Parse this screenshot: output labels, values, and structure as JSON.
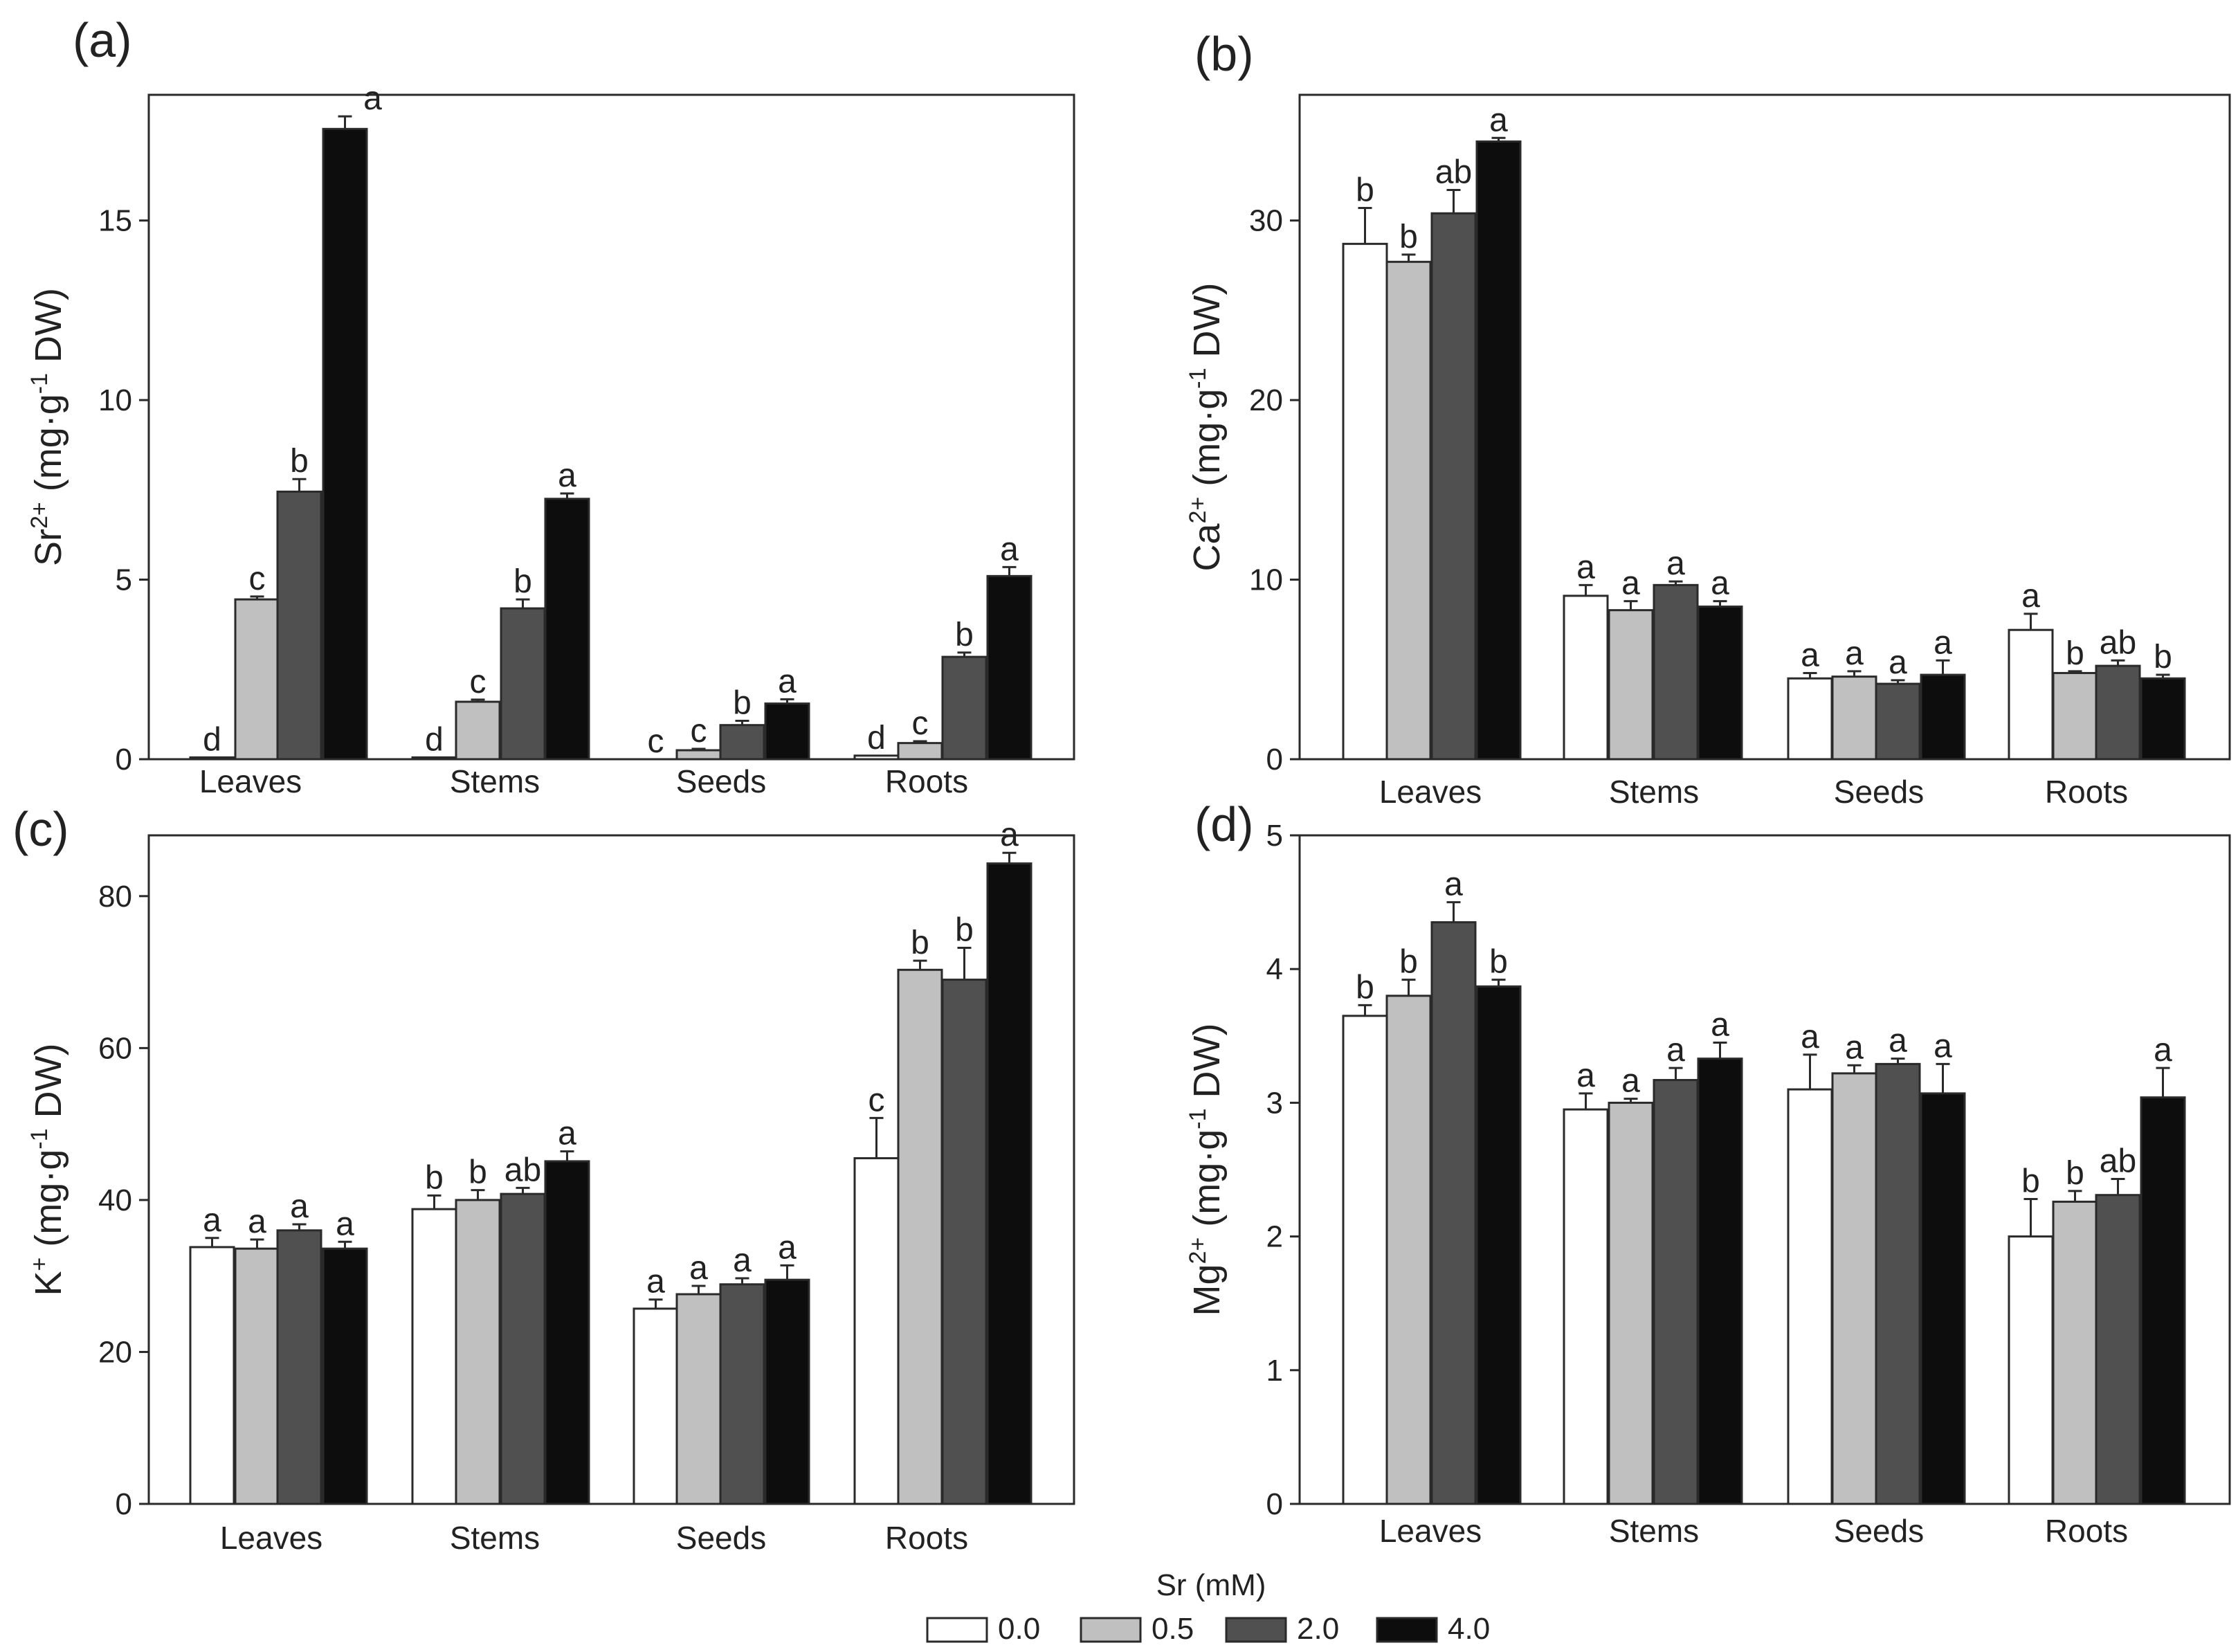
{
  "legend": {
    "title": "Sr (mM)",
    "items": [
      "0.0",
      "0.5",
      "2.0",
      "4.0"
    ]
  },
  "colors": {
    "series": [
      "#ffffff",
      "#c0c0c0",
      "#505050",
      "#0d0d0d"
    ],
    "stroke": "#2a2a2a",
    "text": "#222222"
  },
  "chart_data": [
    {
      "type": "bar",
      "panel_label": "(a)",
      "title": "",
      "xlabel": "",
      "ylabel": {
        "base": "Sr",
        "sup": "2+",
        "unit_before": "(mg·g",
        "unit_sup": "-1",
        "unit_after": "DW)"
      },
      "categories": [
        "Leaves",
        "Stems",
        "Seeds",
        "Roots"
      ],
      "ylim": [
        0,
        18.5
      ],
      "yticks": [
        0,
        5,
        10,
        15
      ],
      "series": [
        {
          "name": "0.0",
          "values": [
            0.05,
            0.05,
            0.0,
            0.1
          ],
          "errors": [
            0.0,
            0.0,
            0.0,
            0.0
          ],
          "letters": [
            "d",
            "d",
            "c",
            "d"
          ]
        },
        {
          "name": "0.5",
          "values": [
            4.45,
            1.6,
            0.25,
            0.45
          ],
          "errors": [
            0.08,
            0.06,
            0.04,
            0.05
          ],
          "letters": [
            "c",
            "c",
            "c",
            "c"
          ]
        },
        {
          "name": "2.0",
          "values": [
            7.45,
            4.2,
            0.95,
            2.85
          ],
          "errors": [
            0.35,
            0.25,
            0.12,
            0.12
          ],
          "letters": [
            "b",
            "b",
            "b",
            "b"
          ]
        },
        {
          "name": "4.0",
          "values": [
            17.55,
            7.25,
            1.55,
            5.1
          ],
          "errors": [
            0.35,
            0.15,
            0.12,
            0.25
          ],
          "letters": [
            "a",
            "a",
            "a",
            "a"
          ]
        }
      ]
    },
    {
      "type": "bar",
      "panel_label": "(b)",
      "title": "",
      "xlabel": "",
      "ylabel": {
        "base": "Ca",
        "sup": "2+",
        "unit_before": "(mg·g",
        "unit_sup": "-1",
        "unit_after": "DW)"
      },
      "categories": [
        "Leaves",
        "Stems",
        "Seeds",
        "Roots"
      ],
      "ylim": [
        0,
        37
      ],
      "yticks": [
        0,
        10,
        20,
        30
      ],
      "series": [
        {
          "name": "0.0",
          "values": [
            28.7,
            9.1,
            4.5,
            7.2
          ],
          "errors": [
            2.0,
            0.6,
            0.3,
            0.9
          ],
          "letters": [
            "b",
            "a",
            "a",
            "a"
          ]
        },
        {
          "name": "0.5",
          "values": [
            27.7,
            8.3,
            4.6,
            4.8
          ],
          "errors": [
            0.4,
            0.5,
            0.3,
            0.1
          ],
          "letters": [
            "b",
            "a",
            "a",
            "b"
          ]
        },
        {
          "name": "2.0",
          "values": [
            30.4,
            9.7,
            4.2,
            5.2
          ],
          "errors": [
            1.3,
            0.2,
            0.2,
            0.3
          ],
          "letters": [
            "ab",
            "a",
            "a",
            "ab"
          ]
        },
        {
          "name": "4.0",
          "values": [
            34.4,
            8.5,
            4.7,
            4.5
          ],
          "errors": [
            0.2,
            0.3,
            0.8,
            0.2
          ],
          "letters": [
            "a",
            "a",
            "a",
            "b"
          ]
        }
      ]
    },
    {
      "type": "bar",
      "panel_label": "(c)",
      "title": "",
      "xlabel": "",
      "ylabel": {
        "base": "K",
        "sup": "+",
        "unit_before": "(mg·g",
        "unit_sup": "-1",
        "unit_after": "DW)"
      },
      "categories": [
        "Leaves",
        "Stems",
        "Seeds",
        "Roots"
      ],
      "ylim": [
        0,
        88
      ],
      "yticks": [
        0,
        20,
        40,
        60,
        80
      ],
      "series": [
        {
          "name": "0.0",
          "values": [
            33.8,
            38.8,
            25.7,
            45.5
          ],
          "errors": [
            1.2,
            1.8,
            1.2,
            5.3
          ],
          "letters": [
            "a",
            "b",
            "a",
            "c"
          ]
        },
        {
          "name": "0.5",
          "values": [
            33.6,
            40.0,
            27.6,
            70.3
          ],
          "errors": [
            1.2,
            1.3,
            1.1,
            1.2
          ],
          "letters": [
            "a",
            "b",
            "a",
            "b"
          ]
        },
        {
          "name": "2.0",
          "values": [
            36.0,
            40.8,
            28.9,
            69.0
          ],
          "errors": [
            0.8,
            0.8,
            0.8,
            4.2
          ],
          "letters": [
            "a",
            "ab",
            "a",
            "b"
          ]
        },
        {
          "name": "4.0",
          "values": [
            33.6,
            45.1,
            29.5,
            84.3
          ],
          "errors": [
            0.9,
            1.3,
            1.9,
            1.4
          ],
          "letters": [
            "a",
            "a",
            "a",
            "a"
          ]
        }
      ]
    },
    {
      "type": "bar",
      "panel_label": "(d)",
      "title": "",
      "xlabel": "",
      "ylabel": {
        "base": "Mg",
        "sup": "2+",
        "unit_before": "(mg·g",
        "unit_sup": "-1",
        "unit_after": "DW)"
      },
      "categories": [
        "Leaves",
        "Stems",
        "Seeds",
        "Roots"
      ],
      "ylim": [
        0,
        5
      ],
      "yticks": [
        0,
        1,
        2,
        3,
        4,
        5
      ],
      "series": [
        {
          "name": "0.0",
          "values": [
            3.65,
            2.95,
            3.1,
            2.0
          ],
          "errors": [
            0.08,
            0.12,
            0.26,
            0.28
          ],
          "letters": [
            "b",
            "a",
            "a",
            "b"
          ]
        },
        {
          "name": "0.5",
          "values": [
            3.8,
            3.0,
            3.22,
            2.26
          ],
          "errors": [
            0.12,
            0.03,
            0.06,
            0.08
          ],
          "letters": [
            "b",
            "a",
            "a",
            "b"
          ]
        },
        {
          "name": "2.0",
          "values": [
            4.35,
            3.17,
            3.29,
            2.31
          ],
          "errors": [
            0.15,
            0.09,
            0.04,
            0.12
          ],
          "letters": [
            "a",
            "a",
            "a",
            "ab"
          ]
        },
        {
          "name": "4.0",
          "values": [
            3.87,
            3.33,
            3.07,
            3.04
          ],
          "errors": [
            0.05,
            0.12,
            0.22,
            0.22
          ],
          "letters": [
            "b",
            "a",
            "a",
            "a"
          ]
        }
      ]
    }
  ]
}
